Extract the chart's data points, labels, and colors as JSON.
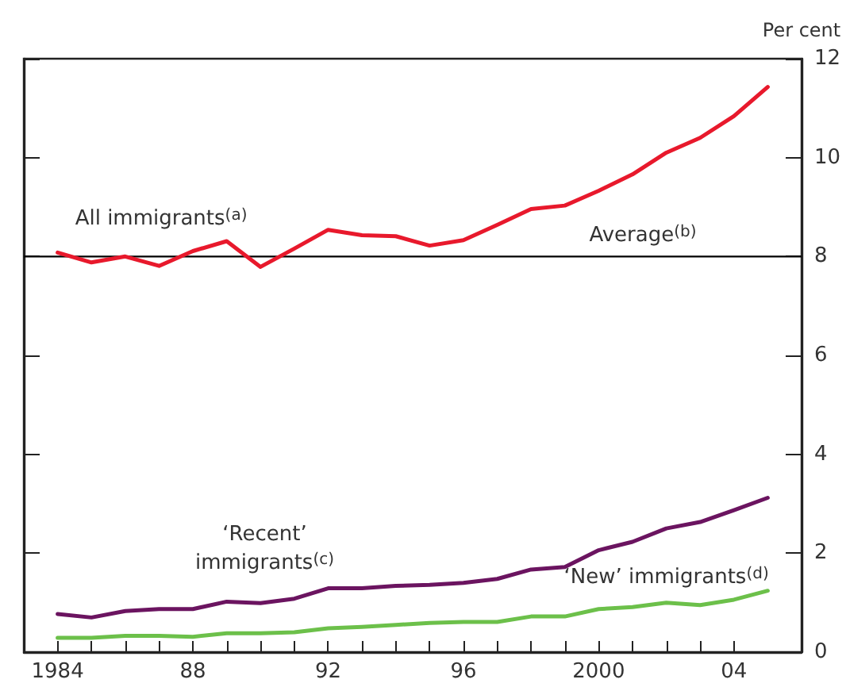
{
  "chart_data": {
    "type": "line",
    "ylabel": "Per cent",
    "x": [
      1984,
      1985,
      1986,
      1987,
      1988,
      1989,
      1990,
      1991,
      1992,
      1993,
      1994,
      1995,
      1996,
      1997,
      1998,
      1999,
      2000,
      2001,
      2002,
      2003,
      2004,
      2005
    ],
    "series": [
      {
        "name": "All immigrants$^{(a)}$",
        "color": "#e8192c",
        "values": [
          8.08,
          7.88,
          8.0,
          7.81,
          8.11,
          8.31,
          7.79,
          8.16,
          8.54,
          8.43,
          8.41,
          8.22,
          8.33,
          8.64,
          8.96,
          9.03,
          9.33,
          9.66,
          10.1,
          10.4,
          10.84,
          11.43
        ]
      },
      {
        "name": "‘Recent’ immigrants$^{(c)}$",
        "color": "#6b1460",
        "values": [
          0.77,
          0.7,
          0.83,
          0.87,
          0.87,
          1.02,
          0.99,
          1.08,
          1.29,
          1.29,
          1.34,
          1.36,
          1.4,
          1.48,
          1.67,
          1.72,
          2.06,
          2.23,
          2.5,
          2.63,
          2.87,
          3.12
        ]
      },
      {
        "name": "‘New’ immigrants$^{(d)}$",
        "color": "#6cc04a",
        "values": [
          0.29,
          0.29,
          0.33,
          0.33,
          0.31,
          0.38,
          0.38,
          0.4,
          0.48,
          0.51,
          0.55,
          0.59,
          0.61,
          0.61,
          0.72,
          0.72,
          0.87,
          0.91,
          1.0,
          0.95,
          1.06,
          1.24
        ]
      }
    ],
    "ref_lines": [
      {
        "axis": "y",
        "value": 8,
        "label": "Average$^{(b)}$",
        "color": "#000000"
      }
    ],
    "xlim": [
      1983,
      2006
    ],
    "xticks": [
      1984,
      {
        "value": 1985,
        "label": null
      },
      {
        "value": 1986,
        "label": null
      },
      {
        "value": 1987,
        "label": null
      },
      {
        "value": 1988,
        "label": "88"
      },
      {
        "value": 1989,
        "label": null
      },
      {
        "value": 1990,
        "label": null
      },
      {
        "value": 1991,
        "label": null
      },
      {
        "value": 1992,
        "label": "92"
      },
      {
        "value": 1993,
        "label": null
      },
      {
        "value": 1994,
        "label": null
      },
      {
        "value": 1995,
        "label": null
      },
      {
        "value": 1996,
        "label": "96"
      },
      {
        "value": 1997,
        "label": null
      },
      {
        "value": 1998,
        "label": null
      },
      {
        "value": 1999,
        "label": null
      },
      {
        "value": 2000,
        "label": "2000"
      },
      {
        "value": 2001,
        "label": null
      },
      {
        "value": 2002,
        "label": null
      },
      {
        "value": 2003,
        "label": null
      },
      {
        "value": 2004,
        "label": "04"
      }
    ],
    "ylim": [
      0,
      12
    ],
    "yticks": [
      0,
      2,
      4,
      6,
      8,
      10,
      12
    ],
    "grid": false,
    "legend": false,
    "marker": "none",
    "line_style": "solid"
  }
}
